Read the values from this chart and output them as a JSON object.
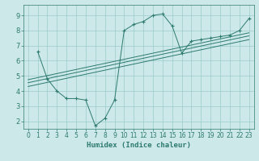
{
  "xlabel": "Humidex (Indice chaleur)",
  "xlim": [
    -0.5,
    23.5
  ],
  "ylim": [
    1.5,
    9.7
  ],
  "yticks": [
    2,
    3,
    4,
    5,
    6,
    7,
    8,
    9
  ],
  "xticks": [
    0,
    1,
    2,
    3,
    4,
    5,
    6,
    7,
    8,
    9,
    10,
    11,
    12,
    13,
    14,
    15,
    16,
    17,
    18,
    19,
    20,
    21,
    22,
    23
  ],
  "background_color": "#cce8e8",
  "grid_color": "#99cccc",
  "line_color": "#2d7a6e",
  "curve1_x": [
    1,
    2,
    3,
    4,
    5,
    6,
    7,
    8,
    9,
    10,
    11,
    12,
    13,
    14,
    15,
    16,
    17,
    18,
    19,
    20,
    21,
    22,
    23
  ],
  "curve1_y": [
    6.6,
    4.8,
    4.0,
    3.5,
    3.5,
    3.4,
    1.7,
    2.2,
    3.4,
    8.0,
    8.4,
    8.6,
    9.0,
    9.1,
    8.3,
    6.5,
    7.3,
    7.4,
    7.5,
    7.6,
    7.7,
    8.0,
    8.8
  ],
  "line1_x": [
    0,
    23
  ],
  "line1_y": [
    4.3,
    7.4
  ],
  "line2_x": [
    0,
    23
  ],
  "line2_y": [
    4.55,
    7.65
  ],
  "line3_x": [
    0,
    23
  ],
  "line3_y": [
    4.75,
    7.85
  ]
}
